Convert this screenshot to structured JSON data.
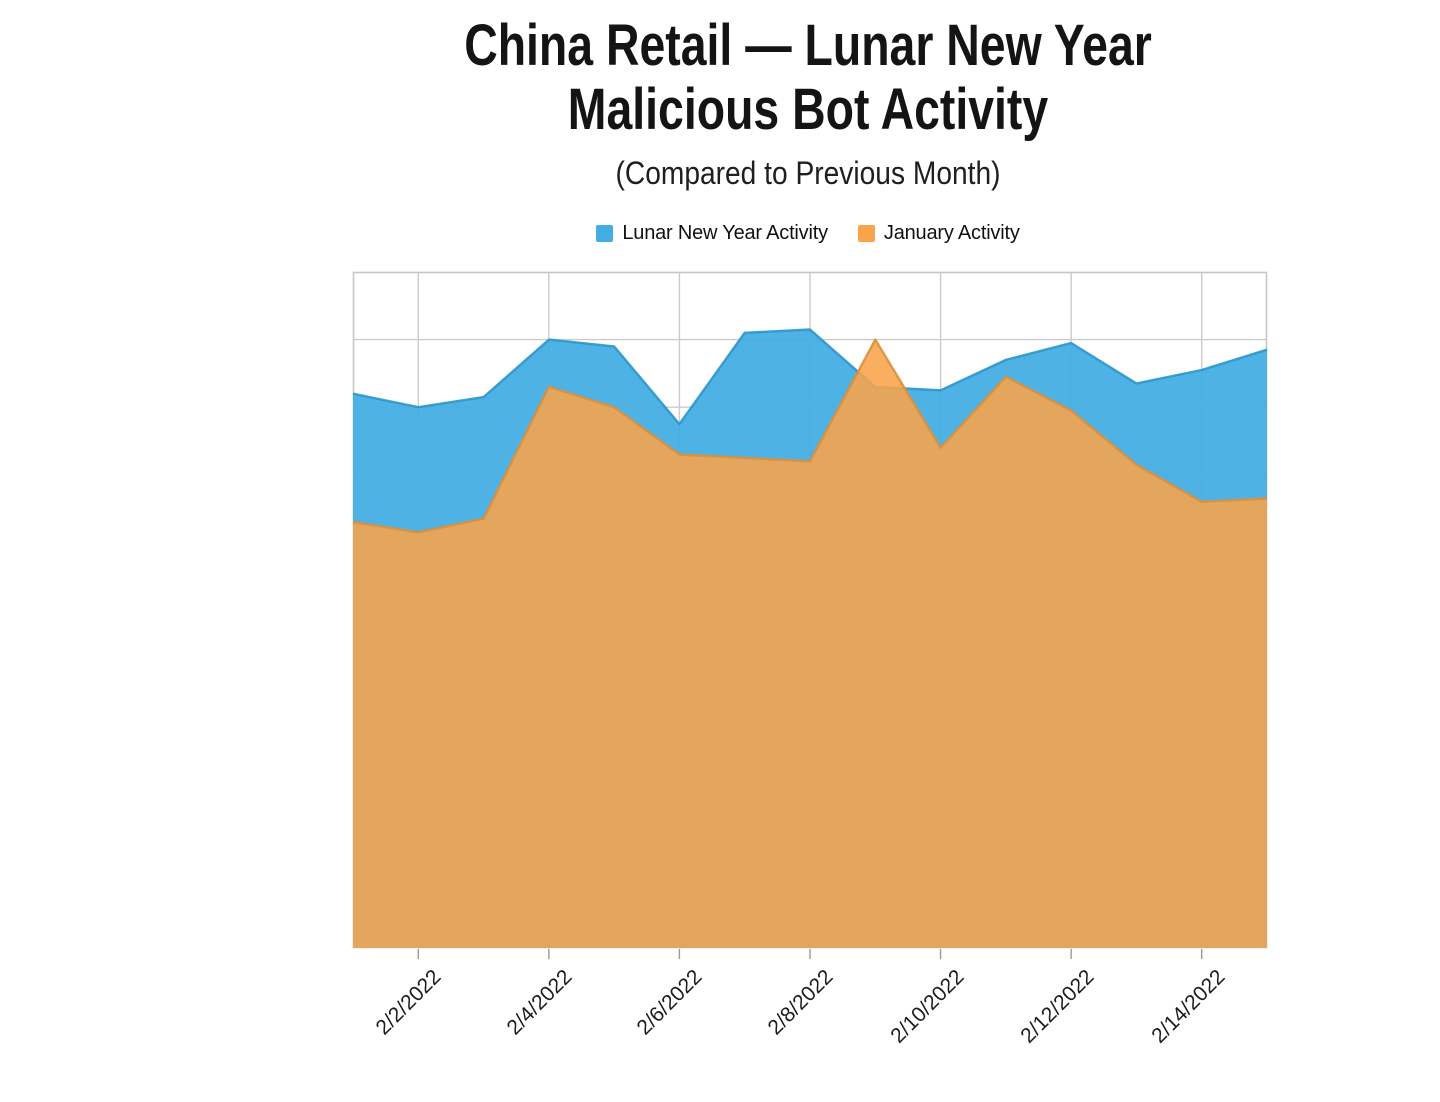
{
  "header": {
    "title_full": "China Retail — Lunar New Year Malicious Bot Activity",
    "subtitle": "(Compared to Previous Month)"
  },
  "chart_data": {
    "type": "area",
    "title": "China Retail — Lunar New Year Malicious Bot Activity",
    "title_lines": [
      "China Retail — Lunar New Year",
      "Malicious Bot Activity"
    ],
    "subtitle": "(Compared to Previous Month)",
    "x": [
      "2/1/2022",
      "2/2/2022",
      "2/3/2022",
      "2/4/2022",
      "2/5/2022",
      "2/6/2022",
      "2/7/2022",
      "2/8/2022",
      "2/9/2022",
      "2/10/2022",
      "2/11/2022",
      "2/12/2022",
      "2/13/2022",
      "2/14/2022",
      "2/15/2022"
    ],
    "x_axis_tick_labels": [
      "2/2/2022",
      "2/4/2022",
      "2/6/2022",
      "2/8/2022",
      "2/10/2022",
      "2/12/2022",
      "2/14/2022"
    ],
    "y_axis": {
      "labels_visible": false,
      "ylim": [
        0,
        10
      ],
      "gridline_step": 1,
      "note": "y-axis has no visible labels; values estimated in gridline units (plot height = 10 gridline rows)"
    },
    "series": [
      {
        "name": "Lunar New Year Activity",
        "color": "#41ADE2",
        "stroke": "#2B96CC",
        "fill_opacity": 0.93,
        "values": [
          8.2,
          8.0,
          8.15,
          9.0,
          8.9,
          7.75,
          9.1,
          9.15,
          8.3,
          8.25,
          8.7,
          8.95,
          8.35,
          8.55,
          8.85
        ]
      },
      {
        "name": "January Activity",
        "color": "#F9A44A",
        "stroke": "#DD8F3B",
        "fill_opacity": 0.88,
        "values": [
          6.3,
          6.15,
          6.35,
          8.3,
          8.0,
          7.3,
          7.25,
          7.2,
          9.0,
          7.4,
          8.45,
          7.95,
          7.15,
          6.6,
          6.65
        ]
      }
    ],
    "legend_position": "top",
    "grid": true,
    "baseline": 0
  },
  "colors": {
    "gridline": "#CBCBCB",
    "plot_border": "#C6C6C6",
    "axis_tick": "#999999",
    "text": "#1A1A1A",
    "background": "#FFFFFF"
  }
}
